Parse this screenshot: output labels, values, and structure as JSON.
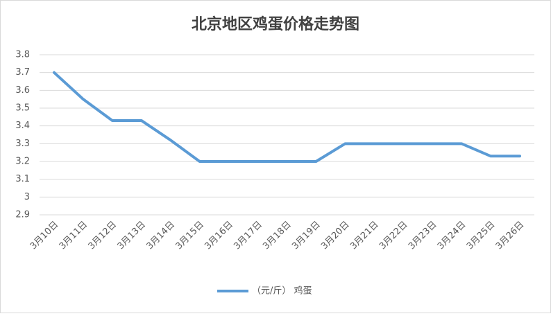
{
  "chart_data": {
    "type": "line",
    "title": "北京地区鸡蛋价格走势图",
    "categories": [
      "3月10日",
      "3月11日",
      "3月12日",
      "3月13日",
      "3月14日",
      "3月15日",
      "3月16日",
      "3月17日",
      "3月18日",
      "3月19日",
      "3月20日",
      "3月21日",
      "3月22日",
      "3月23日",
      "3月24日",
      "3月25日",
      "3月26日"
    ],
    "series": [
      {
        "name": "（元/斤） 鸡蛋",
        "color": "#5b9bd5",
        "values": [
          3.7,
          3.55,
          3.43,
          3.43,
          3.32,
          3.2,
          3.2,
          3.2,
          3.2,
          3.2,
          3.3,
          3.3,
          3.3,
          3.3,
          3.3,
          3.23,
          3.23
        ]
      }
    ],
    "ylim": [
      2.9,
      3.8
    ],
    "yticks": [
      2.9,
      3,
      3.1,
      3.2,
      3.3,
      3.4,
      3.5,
      3.6,
      3.7,
      3.8
    ],
    "grid": true,
    "legend": "bottom"
  }
}
